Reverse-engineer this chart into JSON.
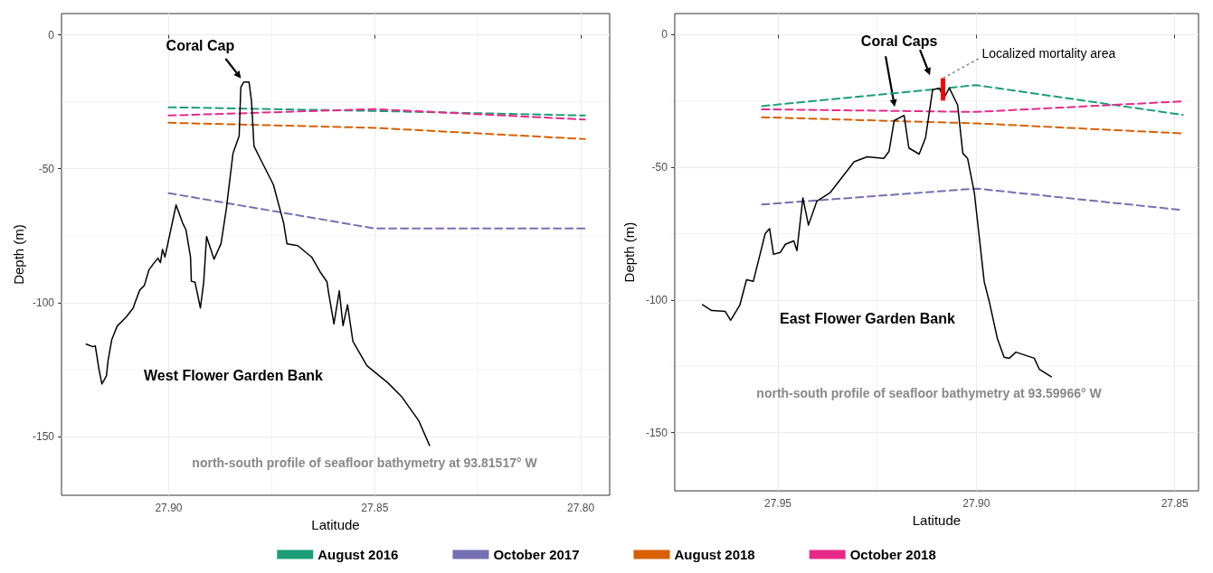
{
  "chart_data": [
    {
      "type": "line",
      "xlabel": "Latitude",
      "ylabel": "Depth (m)",
      "xlim": [
        27.926,
        27.793
      ],
      "ylim": [
        -172,
        8
      ],
      "xticks": [
        {
          "value": 27.9,
          "label": "27.90"
        },
        {
          "value": 27.875,
          "label": null
        },
        {
          "value": 27.85,
          "label": "27.85"
        },
        {
          "value": 27.825,
          "label": null
        },
        {
          "value": 27.8,
          "label": "27.80"
        }
      ],
      "yticks": [
        -150,
        {
          "value": -125,
          "label": null
        },
        -100,
        {
          "value": -75,
          "label": null
        },
        -50,
        {
          "value": -25,
          "label": null
        },
        0
      ],
      "grid": true,
      "legend": "bottom",
      "marker": "none",
      "line_style": "dashed",
      "series": [
        {
          "color": "#000000",
          "line_style": "solid",
          "x": [
            27.92,
            27.9184,
            27.9178,
            27.9169,
            27.9162,
            27.9151,
            27.9147,
            27.9138,
            27.9125,
            27.9103,
            27.9086,
            27.9081,
            27.907,
            27.9059,
            27.9048,
            27.9037,
            27.9026,
            27.902,
            27.9015,
            27.9009,
            27.8982,
            27.8966,
            27.8958,
            27.8947,
            27.8945,
            27.8936,
            27.8923,
            27.8915,
            27.8908,
            27.889,
            27.8873,
            27.886,
            27.8844,
            27.8829,
            27.8825,
            27.8818,
            27.8805,
            27.8799,
            27.8793,
            27.8776,
            27.8746,
            27.8721,
            27.8713,
            27.8687,
            27.8653,
            27.8633,
            27.8616,
            27.8612,
            27.8599,
            27.8586,
            27.8577,
            27.8566,
            27.8553,
            27.8519,
            27.8468,
            27.8434,
            27.8393,
            27.8367
          ],
          "values": [
            -115.5,
            -116.5,
            -116.2,
            -125,
            -130.4,
            -127.4,
            -121.6,
            -113.8,
            -108.8,
            -105.4,
            -102,
            -99.7,
            -95.3,
            -93.6,
            -87.8,
            -85.5,
            -83.4,
            -85.1,
            -80.1,
            -83,
            -63.5,
            -70.3,
            -72.8,
            -83,
            -92,
            -92.4,
            -102,
            -92.4,
            -75.3,
            -83.8,
            -78,
            -64.9,
            -44.3,
            -37.8,
            -19.6,
            -17.6,
            -17.6,
            -24.7,
            -41.5,
            -46.8,
            -55.9,
            -70.3,
            -78,
            -78.7,
            -83,
            -88.4,
            -92.2,
            -96.3,
            -108,
            -95.6,
            -108.6,
            -100.8,
            -114.5,
            -123.6,
            -130,
            -135.3,
            -144.2,
            -153.4
          ]
        },
        {
          "name": "August 2016",
          "color": "#1b9e77",
          "x": [
            27.9,
            27.85,
            27.799
          ],
          "values": [
            -27,
            -28.4,
            -30.1
          ]
        },
        {
          "name": "October 2017",
          "color": "#7570b3",
          "x": [
            27.9,
            27.85,
            27.799
          ],
          "values": [
            -59.1,
            -72.3,
            -72.3
          ]
        },
        {
          "name": "August 2018",
          "color": "#d95f02",
          "x": [
            27.9,
            27.85,
            27.799
          ],
          "values": [
            -32.8,
            -34.7,
            -38.9
          ]
        },
        {
          "name": "October 2018",
          "color": "#e7298a",
          "x": [
            27.9,
            27.85,
            27.799
          ],
          "values": [
            -30.1,
            -27.7,
            -31.6
          ]
        }
      ],
      "annotations": [
        {
          "text": "Coral Cap",
          "x": 27.8818,
          "y": -17.6
        },
        "West Flower Garden Bank",
        "north-south profile of seafloor bathymetry at 93.81517° W"
      ]
    },
    {
      "type": "line",
      "xlabel": "Latitude",
      "ylabel": "Depth (m)",
      "xlim": [
        27.976,
        27.844
      ],
      "ylim": [
        -172,
        8
      ],
      "xticks": [
        {
          "value": 27.95,
          "label": "27.95"
        },
        {
          "value": 27.925,
          "label": null
        },
        {
          "value": 27.9,
          "label": "27.90"
        },
        {
          "value": 27.875,
          "label": null
        },
        {
          "value": 27.85,
          "label": "27.85"
        }
      ],
      "yticks": [
        -150,
        {
          "value": -125,
          "label": null
        },
        -100,
        {
          "value": -75,
          "label": null
        },
        -50,
        {
          "value": -25,
          "label": null
        },
        0
      ],
      "grid": true,
      "marker": "none",
      "line_style": "dashed",
      "series": [
        {
          "color": "#000000",
          "line_style": "solid",
          "x": [
            27.969,
            27.9667,
            27.9633,
            27.9619,
            27.9596,
            27.9579,
            27.9562,
            27.9545,
            27.9532,
            27.9521,
            27.9511,
            27.9494,
            27.9481,
            27.946,
            27.9452,
            27.9437,
            27.9423,
            27.9402,
            27.9368,
            27.9308,
            27.9275,
            27.9233,
            27.922,
            27.9207,
            27.9182,
            27.917,
            27.9144,
            27.9128,
            27.911,
            27.9093,
            27.9082,
            27.9068,
            27.9047,
            27.9034,
            27.9022,
            27.9005,
            27.898,
            27.8968,
            27.8947,
            27.893,
            27.8917,
            27.89,
            27.8854,
            27.8841,
            27.8811
          ],
          "values": [
            -101.8,
            -104,
            -104.3,
            -107.7,
            -102,
            -92.4,
            -93,
            -82.8,
            -75,
            -73.1,
            -82.8,
            -82.1,
            -79,
            -77.7,
            -81.4,
            -61.5,
            -71.8,
            -62.8,
            -59.5,
            -47.9,
            -46,
            -46.6,
            -44,
            -32.4,
            -30.4,
            -42.7,
            -45,
            -38.9,
            -20.7,
            -20.1,
            -24,
            -20.1,
            -26.5,
            -44.7,
            -46.6,
            -59.5,
            -93.2,
            -100.2,
            -114.5,
            -121.6,
            -122,
            -119.7,
            -122,
            -126.2,
            -129
          ]
        },
        {
          "color": "#1b9e77",
          "x": [
            27.954,
            27.9,
            27.848
          ],
          "values": [
            -26.9,
            -19,
            -30.2
          ]
        },
        {
          "color": "#7570b3",
          "x": [
            27.954,
            27.9,
            27.848
          ],
          "values": [
            -64,
            -58,
            -66.1
          ]
        },
        {
          "color": "#d95f02",
          "x": [
            27.954,
            27.9,
            27.848
          ],
          "values": [
            -31.1,
            -33.4,
            -37.2
          ]
        },
        {
          "color": "#e7298a",
          "x": [
            27.954,
            27.9,
            27.848
          ],
          "values": [
            -28.1,
            -29.1,
            -25.1
          ]
        },
        {
          "color": "#ff0000",
          "line_style": "solid",
          "x": [
            27.9084,
            27.9084
          ],
          "values": [
            -16.4,
            -24.8
          ]
        }
      ],
      "annotations": [
        {
          "text": "Coral Caps",
          "x": 27.911,
          "y": -20.7
        },
        {
          "text": "Localized mortality area",
          "x": 27.9084,
          "y": -16.4
        },
        "East Flower Garden Bank",
        "north-south profile of seafloor bathymetry at 93.59966° W"
      ]
    }
  ]
}
